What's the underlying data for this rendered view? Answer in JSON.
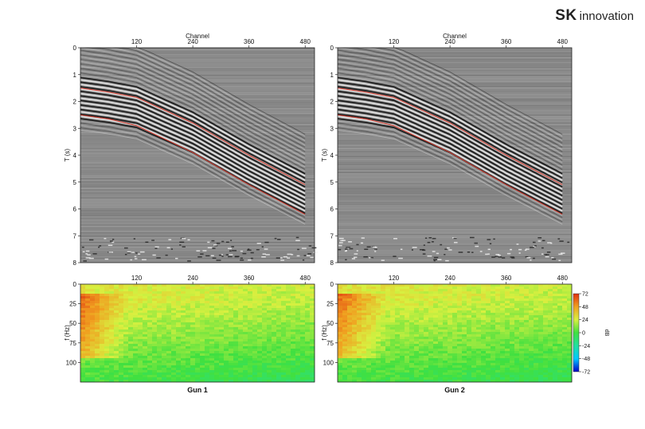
{
  "logo": {
    "brand": "SK",
    "text": "innovation"
  },
  "chart_data": [
    {
      "type": "heatmap",
      "panel": "seismic-gun-1",
      "xlabel": "Channel",
      "ylabel": "T (s)",
      "xticks": [
        120,
        240,
        360,
        480
      ],
      "xlim": [
        0,
        500
      ],
      "yticks": [
        0,
        1,
        2,
        3,
        4,
        5,
        6,
        7,
        8
      ],
      "ylim": [
        0,
        8
      ],
      "window_top": [
        [
          0,
          1.5
        ],
        [
          60,
          1.65
        ],
        [
          120,
          1.85
        ],
        [
          240,
          2.8
        ],
        [
          360,
          4.0
        ],
        [
          480,
          5.1
        ]
      ],
      "window_bottom": [
        [
          0,
          2.5
        ],
        [
          60,
          2.65
        ],
        [
          120,
          2.9
        ],
        [
          240,
          3.9
        ],
        [
          360,
          5.1
        ],
        [
          480,
          6.2
        ]
      ],
      "window_color": "#d23a2e"
    },
    {
      "type": "heatmap",
      "panel": "seismic-gun-2",
      "xlabel": "Channel",
      "ylabel": "T (s)",
      "xticks": [
        120,
        240,
        360,
        480
      ],
      "xlim": [
        0,
        500
      ],
      "yticks": [
        0,
        1,
        2,
        3,
        4,
        5,
        6,
        7,
        8
      ],
      "ylim": [
        0,
        8
      ],
      "window_top": [
        [
          0,
          1.5
        ],
        [
          60,
          1.65
        ],
        [
          120,
          1.85
        ],
        [
          240,
          2.8
        ],
        [
          360,
          4.0
        ],
        [
          480,
          5.1
        ]
      ],
      "window_bottom": [
        [
          0,
          2.5
        ],
        [
          60,
          2.65
        ],
        [
          120,
          2.9
        ],
        [
          240,
          3.9
        ],
        [
          360,
          5.1
        ],
        [
          480,
          6.2
        ]
      ],
      "window_color": "#d23a2e"
    },
    {
      "type": "heatmap",
      "panel": "spectrum-gun-1",
      "title": "Gun 1",
      "ylabel": "f (Hz)",
      "xticks": [
        120,
        240,
        360,
        480
      ],
      "xlim": [
        0,
        500
      ],
      "yticks": [
        0,
        25,
        50,
        75,
        100
      ],
      "ylim": [
        0,
        125
      ]
    },
    {
      "type": "heatmap",
      "panel": "spectrum-gun-2",
      "title": "Gun 2",
      "ylabel": "f (Hz)",
      "xticks": [
        120,
        240,
        360,
        480
      ],
      "xlim": [
        0,
        500
      ],
      "yticks": [
        0,
        25,
        50,
        75,
        100
      ],
      "ylim": [
        0,
        125
      ]
    }
  ],
  "colorbar": {
    "label": "dB",
    "ticks": [
      72,
      48,
      24,
      0,
      -24,
      -48,
      -72
    ],
    "range": [
      -72,
      72
    ],
    "colors": [
      "#0000c8",
      "#00c8ff",
      "#20e0a0",
      "#40e040",
      "#d8f040",
      "#f0a020",
      "#e03010"
    ]
  }
}
